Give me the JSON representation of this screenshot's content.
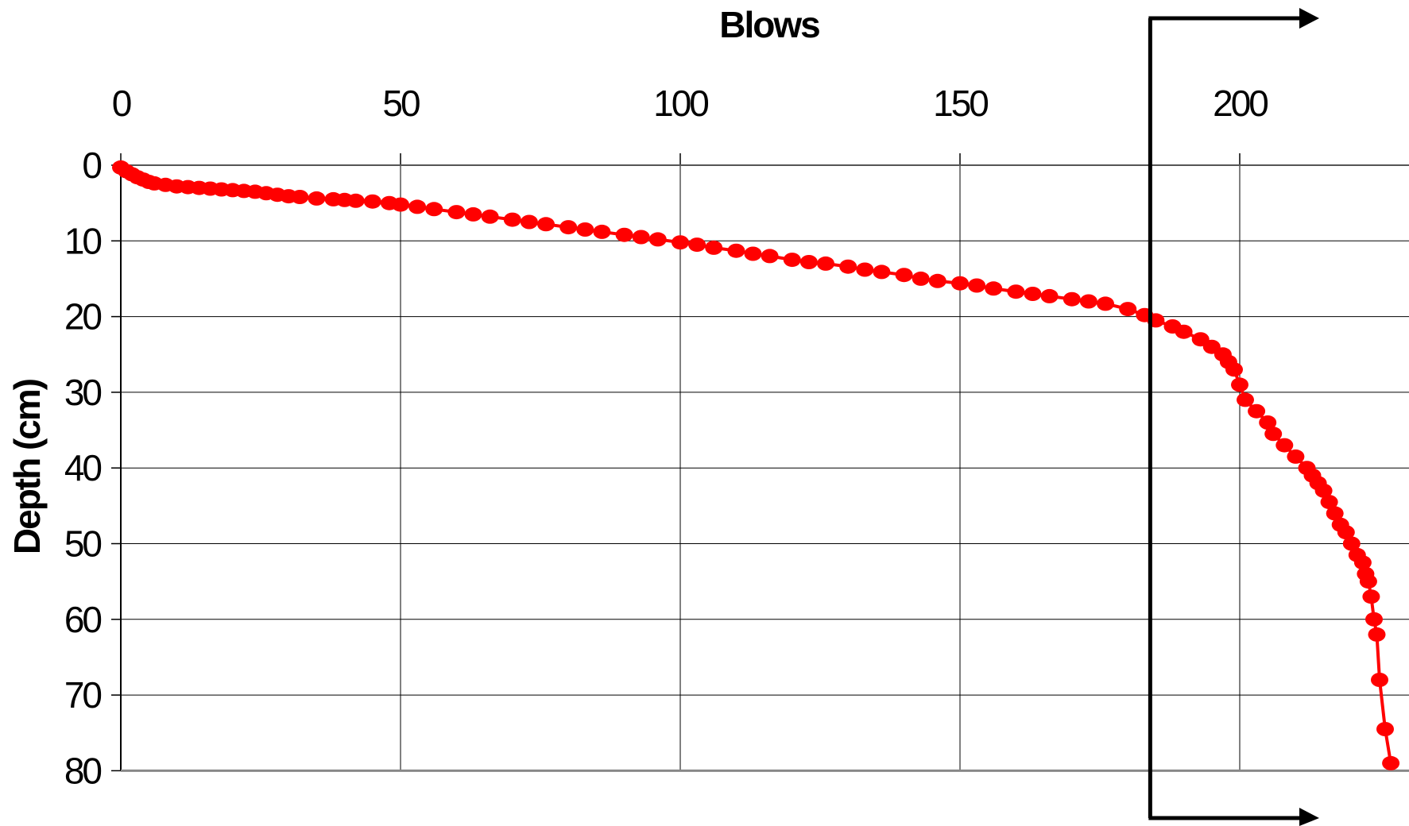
{
  "chart_data": {
    "type": "line",
    "title": "",
    "xlabel": "Blows",
    "ylabel": "Depth (cm)",
    "xlim": [
      0,
      230
    ],
    "ylim": [
      0,
      80
    ],
    "x_ticks": [
      0,
      50,
      100,
      150,
      200
    ],
    "y_ticks": [
      0,
      10,
      20,
      30,
      40,
      50,
      60,
      70,
      80
    ],
    "x_axis_position": "top",
    "y_inverted": true,
    "grid": true,
    "series_color": "#ff0000",
    "annotation": {
      "type": "bracket-arrows",
      "x": 184,
      "color": "#000000",
      "description_shape": "vertical line with arrows pointing right at top and bottom"
    },
    "series": [
      {
        "x": [
          0,
          1,
          2,
          3,
          4,
          5,
          6,
          8,
          10,
          12,
          14,
          16,
          18,
          20,
          22,
          24,
          26,
          28,
          30,
          32,
          35,
          38,
          40,
          42,
          45,
          48,
          50,
          53,
          56,
          60,
          63,
          66,
          70,
          73,
          76,
          80,
          83,
          86,
          90,
          93,
          96,
          100,
          103,
          106,
          110,
          113,
          116,
          120,
          123,
          126,
          130,
          133,
          136,
          140,
          143,
          146,
          150,
          153,
          156,
          160,
          163,
          166,
          170,
          173,
          176,
          180,
          183,
          185,
          188,
          190,
          193,
          195,
          197,
          198,
          199,
          200,
          201,
          203,
          205,
          206,
          208,
          210,
          212,
          213,
          214,
          215,
          216,
          217,
          218,
          219,
          220,
          221,
          222,
          222.5,
          223,
          223.5,
          224,
          224.5,
          225,
          226,
          227
        ],
        "y": [
          0.3,
          0.8,
          1.2,
          1.6,
          1.9,
          2.2,
          2.4,
          2.6,
          2.8,
          2.9,
          3.0,
          3.1,
          3.2,
          3.3,
          3.4,
          3.5,
          3.7,
          3.9,
          4.1,
          4.2,
          4.4,
          4.5,
          4.6,
          4.7,
          4.8,
          5.0,
          5.2,
          5.5,
          5.8,
          6.2,
          6.5,
          6.8,
          7.2,
          7.5,
          7.8,
          8.2,
          8.5,
          8.8,
          9.2,
          9.5,
          9.8,
          10.2,
          10.5,
          10.9,
          11.3,
          11.7,
          12.0,
          12.5,
          12.8,
          13.0,
          13.4,
          13.8,
          14.1,
          14.5,
          15.0,
          15.3,
          15.6,
          15.9,
          16.3,
          16.7,
          17.0,
          17.3,
          17.7,
          18.0,
          18.3,
          19.0,
          19.8,
          20.5,
          21.3,
          22.0,
          23.0,
          24.0,
          25.0,
          26.0,
          27.0,
          29.0,
          31.0,
          32.5,
          34.0,
          35.5,
          37.0,
          38.5,
          40.0,
          41.0,
          42.0,
          43.0,
          44.5,
          46.0,
          47.5,
          48.5,
          50.0,
          51.5,
          52.5,
          54.0,
          55.0,
          57.0,
          60.0,
          62.0,
          68.0,
          74.5,
          79.0
        ]
      }
    ]
  }
}
